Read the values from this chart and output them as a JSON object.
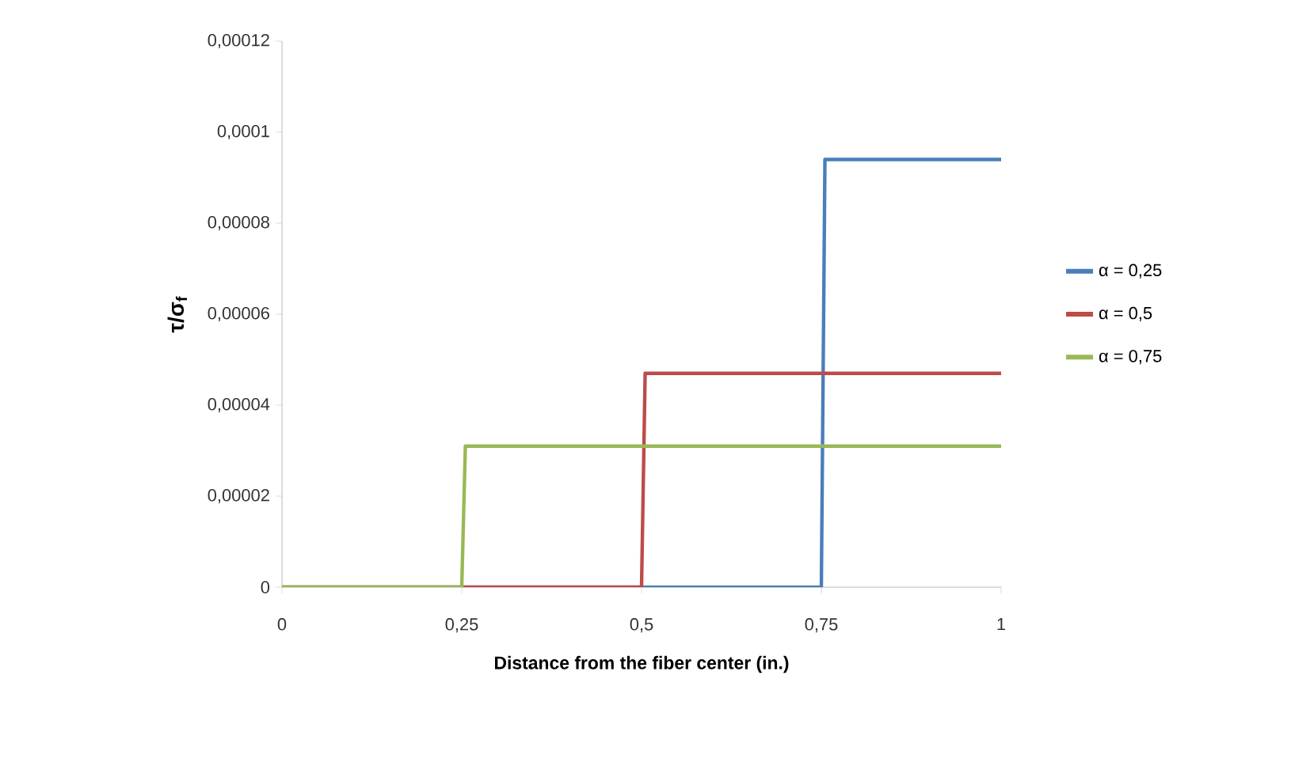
{
  "chart_data": {
    "type": "line",
    "xlabel": "Distance from the fiber center (in.)",
    "ylabel": "τ/σ$_{f}$",
    "xlim": [
      0,
      1
    ],
    "xticks": [
      0,
      {
        "value": 0.25,
        "label": "0,25"
      },
      {
        "value": 0.5,
        "label": "0,5"
      },
      {
        "value": 0.75,
        "label": "0,75"
      },
      1
    ],
    "ylim": [
      0,
      0.00012
    ],
    "yticks": [
      0,
      {
        "value": 2e-05,
        "label": "0,00002"
      },
      {
        "value": 4e-05,
        "label": "0,00004"
      },
      {
        "value": 6e-05,
        "label": "0,00006"
      },
      {
        "value": 8e-05,
        "label": "0,00008"
      },
      {
        "value": 0.0001,
        "label": "0,0001"
      },
      {
        "value": 0.00012,
        "label": "0,00012"
      }
    ],
    "legend": "right",
    "grid": false,
    "series": [
      {
        "name": "α = 0,25",
        "color": "#4a7ebb",
        "x": [
          0,
          0.75,
          0.755,
          1
        ],
        "values": [
          0,
          0,
          9.4e-05,
          9.4e-05
        ]
      },
      {
        "name": "α = 0,5",
        "color": "#be4b48",
        "x": [
          0,
          0.5,
          0.505,
          1
        ],
        "values": [
          0,
          0,
          4.7e-05,
          4.7e-05
        ]
      },
      {
        "name": "α = 0,75",
        "color": "#98b954",
        "x": [
          0,
          0.25,
          0.255,
          1
        ],
        "values": [
          0,
          0,
          3.1e-05,
          3.1e-05
        ]
      }
    ]
  }
}
